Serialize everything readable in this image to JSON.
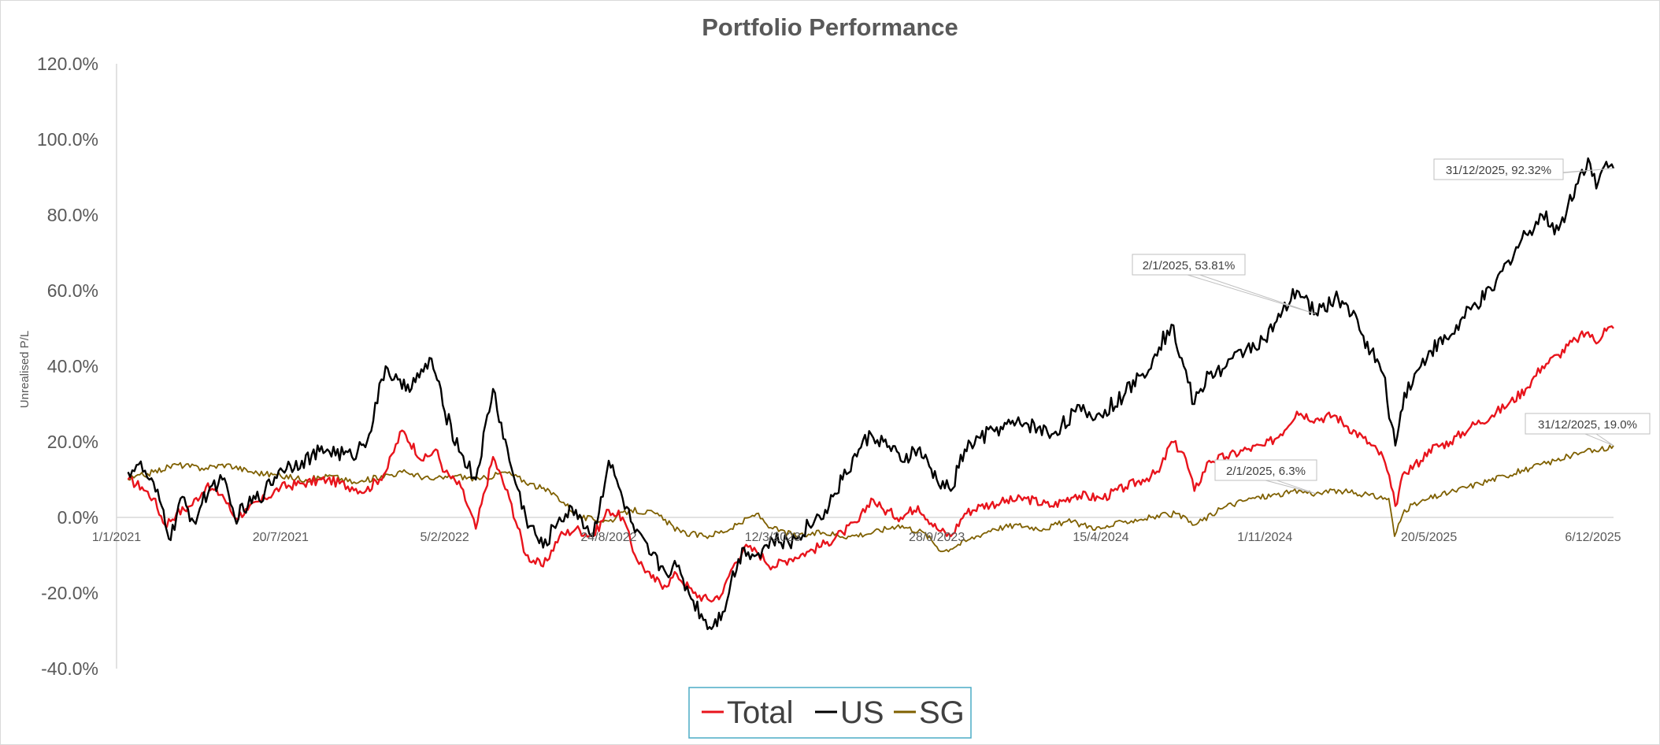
{
  "chart_data": {
    "type": "line",
    "title": "Portfolio Performance",
    "ylabel": "Unrealised P/L",
    "xlabel": "",
    "x_start": "2021-01-01",
    "x_end": "2025-12-31",
    "ylim": [
      -40,
      120
    ],
    "yticks": [
      -40,
      -20,
      0,
      20,
      40,
      60,
      80,
      100,
      120
    ],
    "ytick_labels": [
      "-40.0%",
      "-20.0%",
      "0.0%",
      "20.0%",
      "40.0%",
      "60.0%",
      "80.0%",
      "100.0%",
      "120.0%"
    ],
    "xtick_dates": [
      "2021-01-01",
      "2021-07-20",
      "2022-02-05",
      "2022-08-24",
      "2023-03-12",
      "2023-09-28",
      "2024-04-15",
      "2024-11-01",
      "2025-05-20",
      "2025-12-06"
    ],
    "xtick_labels": [
      "1/1/2021",
      "20/7/2021",
      "5/2/2022",
      "24/8/2022",
      "12/3/2023",
      "28/9/2023",
      "15/4/2024",
      "1/11/2024",
      "20/5/2025",
      "6/12/2025"
    ],
    "legend_position": "bottom",
    "grid": false,
    "series": [
      {
        "name": "Total",
        "color": "#e8141c",
        "points": [
          [
            "2021-01-15",
            10
          ],
          [
            "2021-02-01",
            8
          ],
          [
            "2021-02-15",
            5
          ],
          [
            "2021-03-01",
            -2
          ],
          [
            "2021-03-15",
            1
          ],
          [
            "2021-04-01",
            3
          ],
          [
            "2021-04-20",
            8
          ],
          [
            "2021-05-10",
            6
          ],
          [
            "2021-05-25",
            0
          ],
          [
            "2021-06-10",
            2
          ],
          [
            "2021-07-01",
            5
          ],
          [
            "2021-07-20",
            8
          ],
          [
            "2021-08-15",
            9
          ],
          [
            "2021-09-15",
            10
          ],
          [
            "2021-10-15",
            8
          ],
          [
            "2021-11-01",
            7
          ],
          [
            "2021-11-25",
            12
          ],
          [
            "2021-12-15",
            23
          ],
          [
            "2022-01-10",
            15
          ],
          [
            "2022-01-25",
            18
          ],
          [
            "2022-02-05",
            12
          ],
          [
            "2022-02-25",
            8
          ],
          [
            "2022-03-15",
            -3
          ],
          [
            "2022-04-05",
            16
          ],
          [
            "2022-04-25",
            5
          ],
          [
            "2022-05-15",
            -10
          ],
          [
            "2022-06-05",
            -13
          ],
          [
            "2022-06-25",
            -5
          ],
          [
            "2022-07-15",
            -3
          ],
          [
            "2022-08-05",
            -5
          ],
          [
            "2022-08-24",
            2
          ],
          [
            "2022-09-10",
            0
          ],
          [
            "2022-09-25",
            -10
          ],
          [
            "2022-10-15",
            -16
          ],
          [
            "2022-10-31",
            -18
          ],
          [
            "2022-11-15",
            -15
          ],
          [
            "2022-12-05",
            -20
          ],
          [
            "2022-12-25",
            -22
          ],
          [
            "2023-01-10",
            -20
          ],
          [
            "2023-01-20",
            -14
          ],
          [
            "2023-02-05",
            -8
          ],
          [
            "2023-02-20",
            -9
          ],
          [
            "2023-03-12",
            -13
          ],
          [
            "2023-04-01",
            -11
          ],
          [
            "2023-04-25",
            -9
          ],
          [
            "2023-05-15",
            -7
          ],
          [
            "2023-06-05",
            -4
          ],
          [
            "2023-06-25",
            -1
          ],
          [
            "2023-07-10",
            5
          ],
          [
            "2023-07-25",
            2
          ],
          [
            "2023-08-15",
            0
          ],
          [
            "2023-09-05",
            3
          ],
          [
            "2023-09-28",
            -3
          ],
          [
            "2023-10-15",
            -5
          ],
          [
            "2023-11-01",
            1
          ],
          [
            "2023-11-20",
            3
          ],
          [
            "2023-12-15",
            4
          ],
          [
            "2024-01-15",
            5
          ],
          [
            "2024-02-15",
            3
          ],
          [
            "2024-03-15",
            6
          ],
          [
            "2024-04-15",
            5
          ],
          [
            "2024-05-15",
            8
          ],
          [
            "2024-06-05",
            10
          ],
          [
            "2024-06-25",
            12
          ],
          [
            "2024-07-10",
            20
          ],
          [
            "2024-07-25",
            17
          ],
          [
            "2024-08-07",
            7
          ],
          [
            "2024-08-25",
            15
          ],
          [
            "2024-09-15",
            16
          ],
          [
            "2024-10-10",
            18
          ],
          [
            "2024-11-01",
            19
          ],
          [
            "2024-11-20",
            22
          ],
          [
            "2024-12-10",
            28
          ],
          [
            "2025-01-02",
            26
          ],
          [
            "2025-01-25",
            27
          ],
          [
            "2025-02-10",
            24
          ],
          [
            "2025-03-01",
            21
          ],
          [
            "2025-03-25",
            16
          ],
          [
            "2025-04-04",
            8
          ],
          [
            "2025-04-09",
            3
          ],
          [
            "2025-04-20",
            12
          ],
          [
            "2025-05-10",
            15
          ],
          [
            "2025-05-20",
            18
          ],
          [
            "2025-06-15",
            20
          ],
          [
            "2025-07-10",
            24
          ],
          [
            "2025-08-05",
            27
          ],
          [
            "2025-08-25",
            30
          ],
          [
            "2025-09-15",
            34
          ],
          [
            "2025-10-05",
            40
          ],
          [
            "2025-10-25",
            43
          ],
          [
            "2025-11-15",
            47
          ],
          [
            "2025-11-30",
            49
          ],
          [
            "2025-12-10",
            46
          ],
          [
            "2025-12-20",
            50
          ],
          [
            "2025-12-31",
            50
          ]
        ]
      },
      {
        "name": "US",
        "color": "#000000",
        "points": [
          [
            "2021-01-15",
            12
          ],
          [
            "2021-01-28",
            14
          ],
          [
            "2021-02-10",
            10
          ],
          [
            "2021-02-25",
            3
          ],
          [
            "2021-03-08",
            -6
          ],
          [
            "2021-03-20",
            5
          ],
          [
            "2021-04-05",
            -1
          ],
          [
            "2021-04-25",
            8
          ],
          [
            "2021-05-10",
            10
          ],
          [
            "2021-05-25",
            0
          ],
          [
            "2021-06-10",
            3
          ],
          [
            "2021-07-01",
            7
          ],
          [
            "2021-07-20",
            13
          ],
          [
            "2021-08-15",
            15
          ],
          [
            "2021-09-15",
            18
          ],
          [
            "2021-10-15",
            16
          ],
          [
            "2021-11-05",
            22
          ],
          [
            "2021-11-25",
            40
          ],
          [
            "2021-12-15",
            34
          ],
          [
            "2022-01-05",
            37
          ],
          [
            "2022-01-20",
            42
          ],
          [
            "2022-02-05",
            28
          ],
          [
            "2022-02-25",
            17
          ],
          [
            "2022-03-15",
            10
          ],
          [
            "2022-04-05",
            34
          ],
          [
            "2022-04-25",
            15
          ],
          [
            "2022-05-15",
            0
          ],
          [
            "2022-06-05",
            -8
          ],
          [
            "2022-06-25",
            0
          ],
          [
            "2022-07-15",
            2
          ],
          [
            "2022-08-05",
            -5
          ],
          [
            "2022-08-24",
            15
          ],
          [
            "2022-09-10",
            5
          ],
          [
            "2022-09-25",
            -4
          ],
          [
            "2022-10-15",
            -10
          ],
          [
            "2022-10-31",
            -14
          ],
          [
            "2022-11-15",
            -13
          ],
          [
            "2022-12-05",
            -22
          ],
          [
            "2022-12-25",
            -29
          ],
          [
            "2023-01-10",
            -25
          ],
          [
            "2023-01-20",
            -17
          ],
          [
            "2023-02-05",
            -8
          ],
          [
            "2023-02-20",
            -10
          ],
          [
            "2023-03-12",
            -6
          ],
          [
            "2023-04-01",
            -7
          ],
          [
            "2023-04-25",
            -2
          ],
          [
            "2023-05-15",
            2
          ],
          [
            "2023-06-05",
            10
          ],
          [
            "2023-06-25",
            18
          ],
          [
            "2023-07-10",
            22
          ],
          [
            "2023-07-25",
            20
          ],
          [
            "2023-08-15",
            15
          ],
          [
            "2023-09-05",
            18
          ],
          [
            "2023-09-28",
            10
          ],
          [
            "2023-10-15",
            7
          ],
          [
            "2023-11-01",
            18
          ],
          [
            "2023-11-20",
            21
          ],
          [
            "2023-12-15",
            24
          ],
          [
            "2024-01-15",
            25
          ],
          [
            "2024-02-15",
            22
          ],
          [
            "2024-03-15",
            28
          ],
          [
            "2024-04-15",
            27
          ],
          [
            "2024-05-15",
            33
          ],
          [
            "2024-06-05",
            38
          ],
          [
            "2024-06-25",
            45
          ],
          [
            "2024-07-10",
            51
          ],
          [
            "2024-07-25",
            40
          ],
          [
            "2024-08-07",
            30
          ],
          [
            "2024-08-25",
            38
          ],
          [
            "2024-09-15",
            40
          ],
          [
            "2024-10-10",
            45
          ],
          [
            "2024-11-01",
            47
          ],
          [
            "2024-11-20",
            53
          ],
          [
            "2024-12-10",
            60
          ],
          [
            "2025-01-02",
            54
          ],
          [
            "2025-01-25",
            58
          ],
          [
            "2025-02-10",
            56
          ],
          [
            "2025-03-01",
            48
          ],
          [
            "2025-03-25",
            38
          ],
          [
            "2025-04-04",
            25
          ],
          [
            "2025-04-09",
            19
          ],
          [
            "2025-04-20",
            33
          ],
          [
            "2025-05-10",
            40
          ],
          [
            "2025-05-20",
            44
          ],
          [
            "2025-06-15",
            48
          ],
          [
            "2025-07-10",
            55
          ],
          [
            "2025-08-05",
            60
          ],
          [
            "2025-08-25",
            68
          ],
          [
            "2025-09-15",
            75
          ],
          [
            "2025-10-05",
            80
          ],
          [
            "2025-10-25",
            76
          ],
          [
            "2025-11-15",
            88
          ],
          [
            "2025-11-30",
            95
          ],
          [
            "2025-12-10",
            87
          ],
          [
            "2025-12-20",
            93
          ],
          [
            "2025-12-31",
            92.32
          ]
        ]
      },
      {
        "name": "SG",
        "color": "#7f6000",
        "points": [
          [
            "2021-01-15",
            10
          ],
          [
            "2021-02-15",
            12
          ],
          [
            "2021-03-15",
            14
          ],
          [
            "2021-04-15",
            13
          ],
          [
            "2021-05-15",
            14
          ],
          [
            "2021-06-15",
            12
          ],
          [
            "2021-07-20",
            11
          ],
          [
            "2021-08-20",
            10
          ],
          [
            "2021-09-20",
            11
          ],
          [
            "2021-10-20",
            9
          ],
          [
            "2021-11-20",
            11
          ],
          [
            "2021-12-20",
            12
          ],
          [
            "2022-01-20",
            10
          ],
          [
            "2022-02-20",
            11
          ],
          [
            "2022-03-20",
            10
          ],
          [
            "2022-04-20",
            12
          ],
          [
            "2022-05-20",
            9
          ],
          [
            "2022-06-20",
            6
          ],
          [
            "2022-07-20",
            0
          ],
          [
            "2022-08-24",
            -1
          ],
          [
            "2022-09-20",
            2
          ],
          [
            "2022-10-20",
            1
          ],
          [
            "2022-11-20",
            -4
          ],
          [
            "2022-12-20",
            -5
          ],
          [
            "2023-01-20",
            -3
          ],
          [
            "2023-02-20",
            1
          ],
          [
            "2023-03-12",
            -3
          ],
          [
            "2023-04-12",
            -5
          ],
          [
            "2023-05-12",
            -4
          ],
          [
            "2023-06-12",
            -5
          ],
          [
            "2023-07-12",
            -4
          ],
          [
            "2023-08-12",
            -2
          ],
          [
            "2023-09-12",
            -4
          ],
          [
            "2023-10-05",
            -9
          ],
          [
            "2023-11-05",
            -6
          ],
          [
            "2023-12-05",
            -3
          ],
          [
            "2024-01-05",
            -2
          ],
          [
            "2024-02-05",
            -3
          ],
          [
            "2024-03-05",
            -1
          ],
          [
            "2024-04-15",
            -3
          ],
          [
            "2024-05-15",
            -1
          ],
          [
            "2024-06-15",
            0
          ],
          [
            "2024-07-15",
            1
          ],
          [
            "2024-08-07",
            -2
          ],
          [
            "2024-09-15",
            3
          ],
          [
            "2024-10-15",
            5
          ],
          [
            "2024-11-15",
            6
          ],
          [
            "2024-12-15",
            7
          ],
          [
            "2025-01-02",
            6.3
          ],
          [
            "2025-02-01",
            7
          ],
          [
            "2025-03-01",
            6
          ],
          [
            "2025-04-01",
            5
          ],
          [
            "2025-04-08",
            -5
          ],
          [
            "2025-04-20",
            2
          ],
          [
            "2025-05-20",
            5
          ],
          [
            "2025-06-20",
            7
          ],
          [
            "2025-07-20",
            9
          ],
          [
            "2025-08-20",
            11
          ],
          [
            "2025-09-20",
            13
          ],
          [
            "2025-10-20",
            15
          ],
          [
            "2025-11-20",
            17
          ],
          [
            "2025-12-15",
            18
          ],
          [
            "2025-12-31",
            19.0
          ]
        ]
      }
    ],
    "annotations": [
      {
        "text": "31/12/2025, 92.32%",
        "date": "2025-12-31",
        "value": 92.32
      },
      {
        "text": "2/1/2025, 53.81%",
        "date": "2025-01-02",
        "value": 53.81
      },
      {
        "text": "31/12/2025, 19.0%",
        "date": "2025-12-31",
        "value": 19.0
      },
      {
        "text": "2/1/2025, 6.3%",
        "date": "2025-01-02",
        "value": 6.3
      }
    ]
  }
}
